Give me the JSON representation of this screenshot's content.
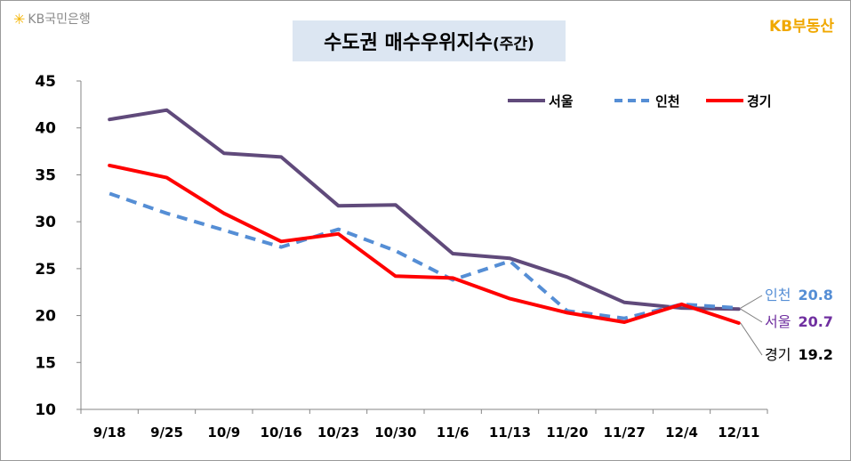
{
  "header": {
    "logo_text": "KB국민은행",
    "brand_text": "KB부동산",
    "title_main": "수도권 매수우위지수",
    "title_sub": "(주간)"
  },
  "colors": {
    "seoul": "#604a7b",
    "incheon": "#558ed5",
    "gyeonggi": "#ff0000",
    "title_bg": "#dce6f2",
    "brand": "#f0a800"
  },
  "chart_data": {
    "type": "line",
    "title": "수도권 매수우위지수(주간)",
    "categories": [
      "9/18",
      "9/25",
      "10/9",
      "10/16",
      "10/23",
      "10/30",
      "11/6",
      "11/13",
      "11/20",
      "11/27",
      "12/4",
      "12/11"
    ],
    "ylim": [
      10,
      45
    ],
    "yticks": [
      10,
      15,
      20,
      25,
      30,
      35,
      40,
      45
    ],
    "grid": false,
    "legend_position": "top-right",
    "series": [
      {
        "name": "서울",
        "key": "seoul",
        "style": "solid",
        "values": [
          40.9,
          41.9,
          37.3,
          36.9,
          31.7,
          31.8,
          26.6,
          26.1,
          24.1,
          21.4,
          20.8,
          20.7
        ]
      },
      {
        "name": "인천",
        "key": "incheon",
        "style": "dashed",
        "values": [
          33.0,
          30.9,
          29.1,
          27.3,
          29.2,
          26.9,
          23.8,
          25.8,
          20.5,
          19.7,
          21.2,
          20.8
        ]
      },
      {
        "name": "경기",
        "key": "gyeonggi",
        "style": "solid",
        "values": [
          36.0,
          34.7,
          30.9,
          27.9,
          28.7,
          24.2,
          24.0,
          21.8,
          20.3,
          19.3,
          21.2,
          19.2
        ]
      }
    ],
    "end_labels": [
      {
        "key": "incheon",
        "name": "인천",
        "value": "20.8"
      },
      {
        "key": "seoul",
        "name": "서울",
        "value": "20.7"
      },
      {
        "key": "gyeonggi",
        "name": "경기",
        "value": "19.2"
      }
    ]
  }
}
